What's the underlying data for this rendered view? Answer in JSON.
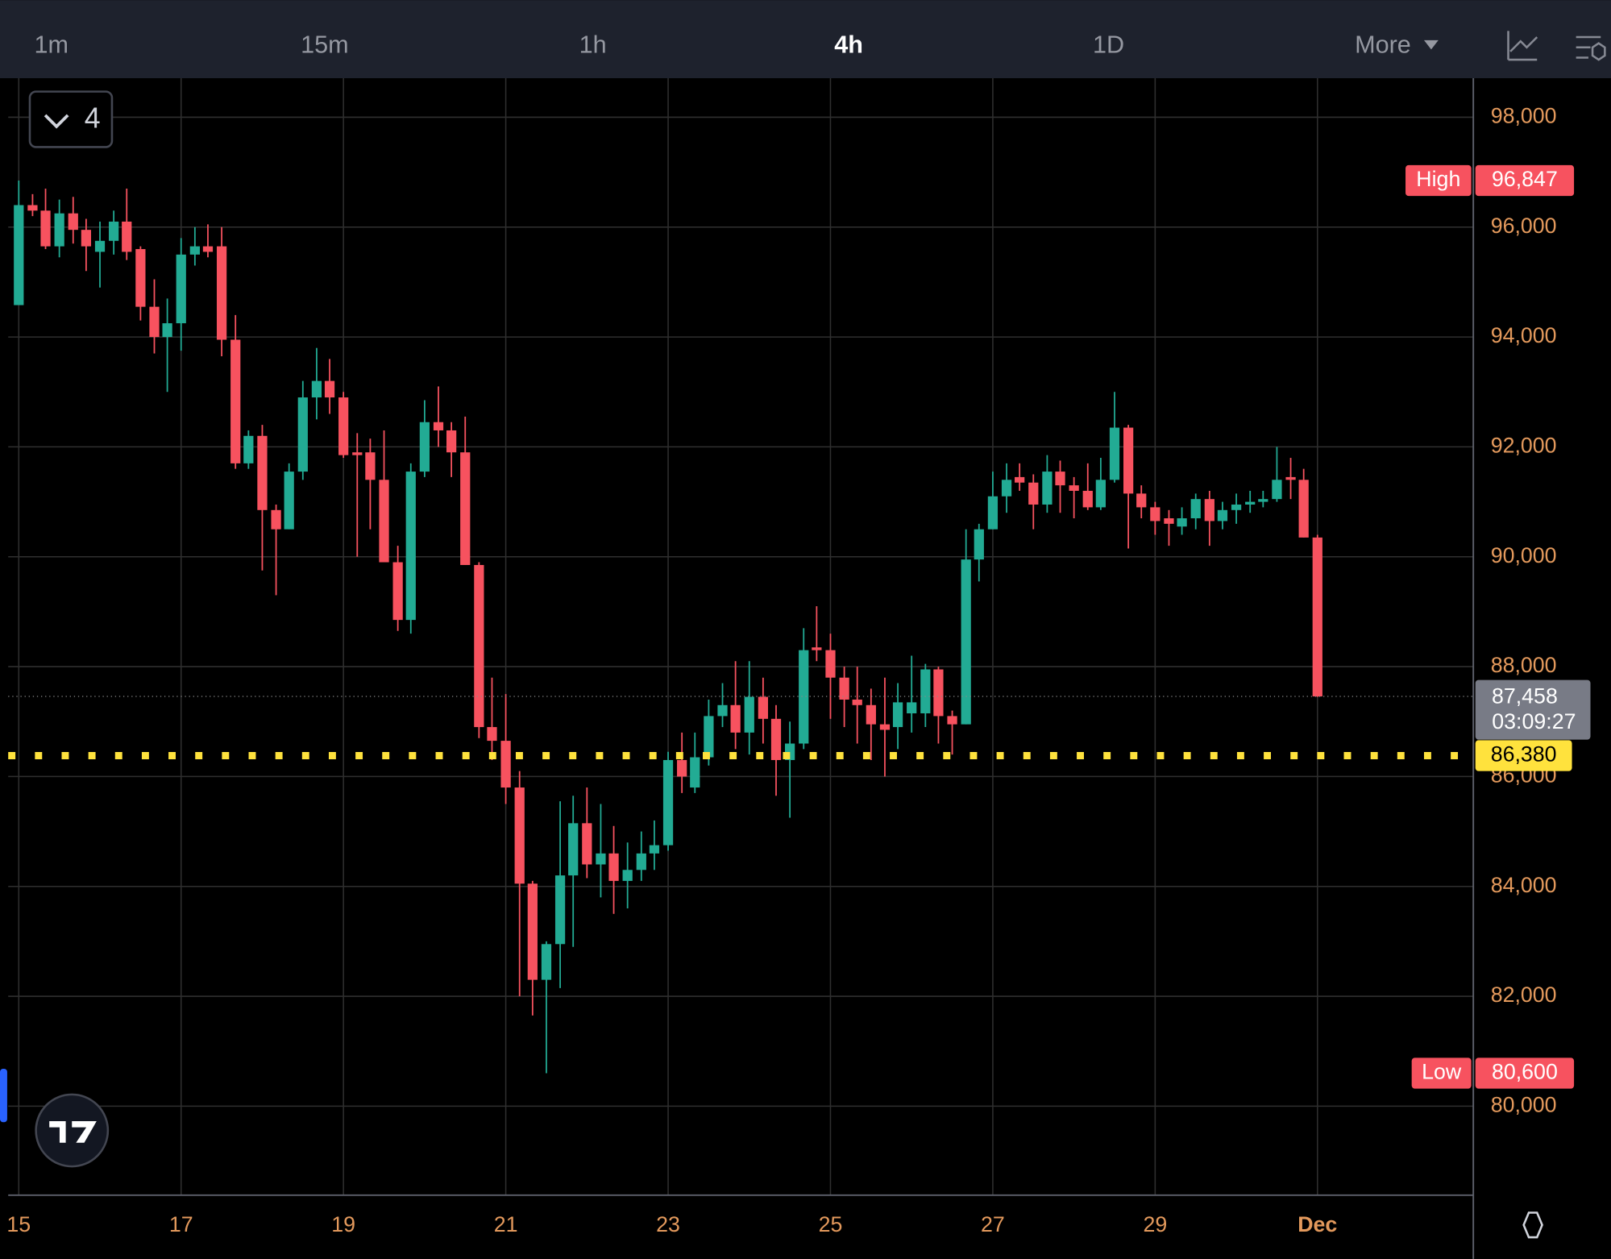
{
  "toolbar": {
    "tabs": [
      "1m",
      "15m",
      "1h",
      "4h",
      "1D",
      "More"
    ],
    "active": 3
  },
  "indicator_count": 4,
  "chart_data": {
    "type": "candlestick",
    "up_color": "#22ab94",
    "down_color": "#f7525f",
    "x": [
      15,
      15.17,
      15.33,
      15.5,
      15.67,
      15.83,
      16,
      16.17,
      16.33,
      16.5,
      16.67,
      16.83,
      17,
      17.17,
      17.33,
      17.5,
      17.67,
      17.83,
      18,
      18.17,
      18.33,
      18.5,
      18.67,
      18.83,
      19,
      19.17,
      19.33,
      19.5,
      19.67,
      19.83,
      20,
      20.17,
      20.33,
      20.5,
      20.67,
      20.83,
      21,
      21.17,
      21.33,
      21.5,
      21.67,
      21.83,
      22,
      22.17,
      22.33,
      22.5,
      22.67,
      22.83,
      23,
      23.17,
      23.33,
      23.5,
      23.67,
      23.83,
      24,
      24.17,
      24.33,
      24.5,
      24.67,
      24.83,
      25,
      25.17,
      25.33,
      25.5,
      25.67,
      25.83,
      26,
      26.17,
      26.33,
      26.5,
      26.67,
      26.83,
      27,
      27.17,
      27.33,
      27.5,
      27.67,
      27.83,
      28,
      28.17,
      28.33,
      28.5,
      28.67,
      28.83,
      29,
      29.17,
      29.33,
      29.5,
      29.67,
      29.83,
      30,
      30.17,
      30.33,
      30.5,
      30.67,
      30.83,
      31
    ],
    "open": [
      94580,
      96400,
      96300,
      95650,
      96250,
      95950,
      95550,
      95750,
      96100,
      95600,
      94550,
      94000,
      94250,
      95500,
      95650,
      95650,
      93950,
      91700,
      92200,
      90850,
      90500,
      91550,
      92900,
      93200,
      92900,
      91900,
      91900,
      91400,
      89900,
      88850,
      91550,
      92450,
      92300,
      91900,
      89850,
      86900,
      86650,
      85800,
      84050,
      82300,
      82950,
      84200,
      85150,
      84400,
      84600,
      84100,
      84300,
      84600,
      84750,
      86300,
      85800,
      86350,
      87100,
      87300,
      86800,
      87450,
      87050,
      86300,
      86600,
      88350,
      88300,
      87800,
      87400,
      87300,
      86950,
      86900,
      87150,
      87150,
      87950,
      87100,
      86950,
      89950,
      90500,
      91100,
      91450,
      91350,
      90950,
      91550,
      91300,
      91200,
      90900,
      91400,
      92350,
      91150,
      90900,
      90700,
      90550,
      90700,
      91050,
      90650,
      90850,
      90950,
      91000,
      91050,
      91450,
      91400,
      90350
    ],
    "high": [
      96847,
      96600,
      96700,
      96500,
      96550,
      96150,
      96100,
      96300,
      96700,
      95650,
      95050,
      94700,
      95800,
      96000,
      96050,
      96000,
      94400,
      92300,
      92400,
      90950,
      91700,
      93200,
      93800,
      93600,
      93000,
      92250,
      92150,
      92300,
      90200,
      91700,
      92850,
      93100,
      92450,
      92550,
      89900,
      87800,
      87500,
      86100,
      84100,
      83000,
      85550,
      85650,
      85800,
      85500,
      85100,
      84800,
      85000,
      85200,
      86450,
      86800,
      86800,
      87400,
      87700,
      88100,
      88100,
      87800,
      87300,
      87000,
      88700,
      89100,
      88600,
      88000,
      88000,
      87600,
      87800,
      87700,
      88200,
      88050,
      88000,
      87200,
      90500,
      90600,
      91550,
      91700,
      91700,
      91500,
      91850,
      91750,
      91450,
      91700,
      91800,
      93000,
      92400,
      91300,
      91000,
      90850,
      90900,
      91150,
      91200,
      91000,
      91150,
      91200,
      91200,
      92000,
      91800,
      91600,
      90400
    ],
    "low": [
      94580,
      96200,
      95600,
      95450,
      95700,
      95200,
      94900,
      95500,
      95400,
      94300,
      93700,
      93000,
      93750,
      95300,
      95450,
      93650,
      91600,
      91600,
      89750,
      89300,
      90500,
      91400,
      92500,
      92600,
      91800,
      90000,
      90500,
      89900,
      88650,
      88600,
      91450,
      92000,
      91450,
      89850,
      86700,
      86300,
      85500,
      82000,
      81650,
      80600,
      82150,
      82900,
      84150,
      83800,
      83500,
      83600,
      84100,
      84300,
      84650,
      85700,
      85700,
      86200,
      86900,
      86500,
      86400,
      86600,
      85650,
      85250,
      86500,
      88100,
      87050,
      86900,
      86600,
      86300,
      86000,
      86500,
      86800,
      86900,
      86600,
      86400,
      86950,
      89550,
      90500,
      90800,
      91200,
      90500,
      90800,
      90800,
      90700,
      90850,
      90850,
      91350,
      90150,
      90700,
      90400,
      90200,
      90400,
      90500,
      90200,
      90500,
      90600,
      90800,
      90900,
      91000,
      91050,
      90350,
      87450
    ],
    "close": [
      96400,
      96300,
      95650,
      96250,
      95950,
      95650,
      95750,
      96100,
      95550,
      94550,
      94000,
      94250,
      95500,
      95650,
      95550,
      93950,
      91700,
      92200,
      90850,
      90500,
      91550,
      92900,
      93200,
      92900,
      91850,
      91850,
      91400,
      89900,
      88850,
      91550,
      92450,
      92300,
      91900,
      89850,
      86900,
      86650,
      85800,
      84050,
      82300,
      82950,
      84200,
      85150,
      84400,
      84600,
      84100,
      84300,
      84600,
      84750,
      86300,
      86000,
      86350,
      87100,
      87300,
      86800,
      87450,
      87050,
      86300,
      86600,
      88300,
      88300,
      87800,
      87400,
      87300,
      86950,
      86850,
      87350,
      87350,
      87950,
      87100,
      86950,
      89950,
      90500,
      91100,
      91400,
      91350,
      90950,
      91550,
      91300,
      91200,
      90900,
      91400,
      92350,
      91150,
      90900,
      90650,
      90600,
      90700,
      91050,
      90650,
      90850,
      90950,
      91000,
      91050,
      91400,
      91400,
      90350,
      87458
    ],
    "xlim": [
      14.87,
      32.92
    ],
    "xticks": [
      15,
      17,
      19,
      21,
      23,
      25,
      27,
      29,
      {
        "value": 31,
        "label": "Dec"
      }
    ],
    "ylim": [
      78380,
      98710
    ],
    "yticks": [
      {
        "value": 80000,
        "label": "80,000"
      },
      {
        "value": 82000,
        "label": "82,000"
      },
      {
        "value": 84000,
        "label": "84,000"
      },
      {
        "value": 86000,
        "label": "86,000"
      },
      {
        "value": 88000,
        "label": "88,000"
      },
      {
        "value": 90000,
        "label": "90,000"
      },
      {
        "value": 92000,
        "label": "92,000"
      },
      {
        "value": 94000,
        "label": "94,000"
      },
      {
        "value": 96000,
        "label": "96,000"
      },
      {
        "value": 98000,
        "label": "98,000"
      }
    ],
    "grid": true,
    "high_marker": {
      "label": "High",
      "value": 96847,
      "value_label": "96,847"
    },
    "low_marker": {
      "label": "Low",
      "value": 80600,
      "value_label": "80,600"
    },
    "last_price": {
      "value": 87458,
      "value_label": "87,458",
      "countdown": "03:09:27"
    },
    "alert_line": {
      "value": 86380,
      "value_label": "86,380",
      "color": "#ffe23d"
    }
  }
}
